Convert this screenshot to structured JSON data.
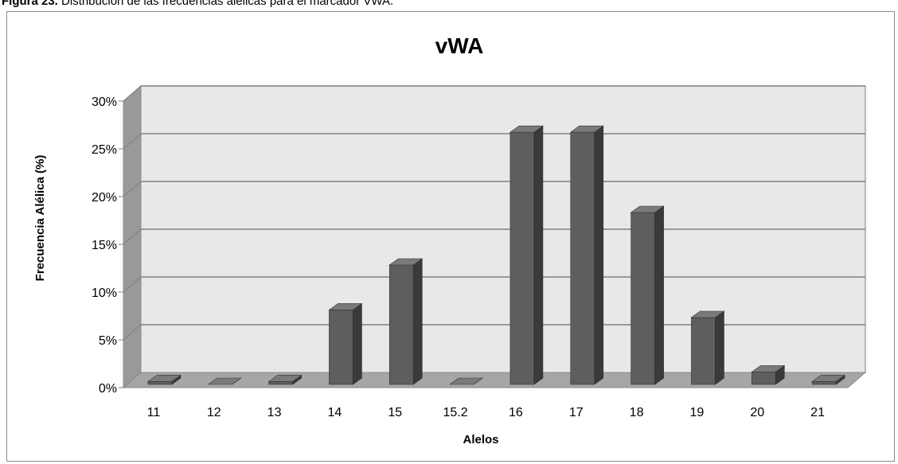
{
  "caption": {
    "label": "Figura 23.",
    "text": " Distribución de las frecuencias alélicas para el marcador VWA."
  },
  "chart_data": {
    "type": "bar",
    "title": "vWA",
    "xlabel": "Alelos",
    "ylabel": "Frecuencia Alélica (%)",
    "ylim": [
      0,
      30
    ],
    "yticks": [
      "0%",
      "5%",
      "10%",
      "15%",
      "20%",
      "25%",
      "30%"
    ],
    "categories": [
      "11",
      "12",
      "13",
      "14",
      "15",
      "15.2",
      "16",
      "17",
      "18",
      "19",
      "20",
      "21"
    ],
    "values": [
      0.3,
      0.0,
      0.3,
      7.8,
      12.5,
      0.0,
      26.4,
      26.4,
      18.0,
      7.0,
      1.3,
      0.3
    ],
    "grid": true,
    "legend": "none",
    "colors": {
      "bar_front": "#5e5e5e",
      "bar_side": "#3a3a3a",
      "bar_top": "#7a7a7a",
      "back_wall": "#e8e8e8",
      "side_wall": "#999999",
      "floor": "#a6a6a6",
      "gridline": "#7f7f7f"
    }
  }
}
